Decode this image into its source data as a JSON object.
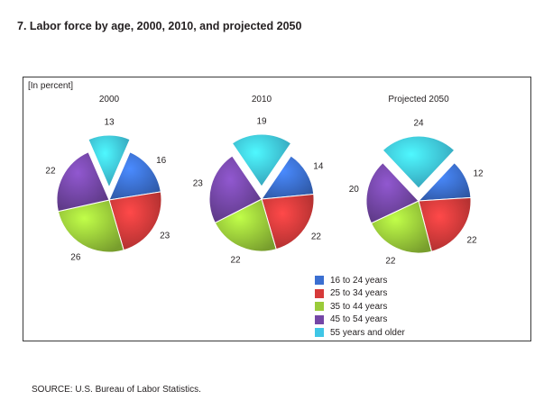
{
  "figure": {
    "title": "7.  Labor force by age, 2000, 2010, and projected 2050",
    "unit_note": "[In percent]",
    "source": "SOURCE:  U.S. Bureau of Labor Statistics."
  },
  "chart_data": {
    "type": "pie",
    "unit": "percent",
    "categories": [
      "16 to 24 years",
      "25 to 34 years",
      "35 to 44 years",
      "45 to 54 years",
      "55 years and older"
    ],
    "colors": [
      "#3b6fd1",
      "#d63a3a",
      "#9acb3a",
      "#7446a6",
      "#3fc6e6"
    ],
    "pies": [
      {
        "title": "2000",
        "values": [
          16,
          23,
          26,
          22,
          13
        ],
        "exploded": "55 years and older"
      },
      {
        "title": "2010",
        "values": [
          14,
          22,
          22,
          23,
          19
        ],
        "exploded": "55 years and older"
      },
      {
        "title": "Projected 2050",
        "values": [
          12,
          22,
          22,
          20,
          24
        ],
        "exploded": "55 years and older"
      }
    ],
    "legend_position": "bottom-right",
    "sort_order": "clockwise from 55 years and older"
  }
}
